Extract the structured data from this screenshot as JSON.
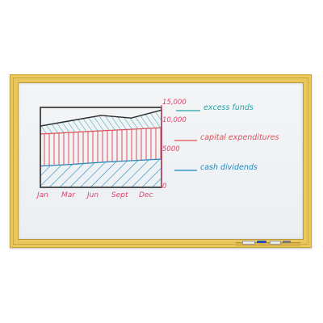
{
  "chart_data": {
    "type": "area",
    "x": [
      "Jan",
      "Mar",
      "Jun",
      "Sept",
      "Dec"
    ],
    "yticks": [
      "15,000",
      "10,000",
      "5000",
      "0"
    ],
    "series": [
      {
        "name": "cash dividends",
        "color": "#1b8ac2",
        "values": [
          4000,
          4300,
          4700,
          5000,
          5300
        ]
      },
      {
        "name": "capital expenditures",
        "color": "#e04f57",
        "values": [
          10000,
          10300,
          10600,
          10900,
          11200
        ]
      },
      {
        "name": "excess funds",
        "color": "#22a3a6",
        "values": [
          11500,
          12500,
          13500,
          13000,
          14500
        ]
      }
    ],
    "ylim": [
      0,
      15000
    ]
  },
  "colors": {
    "frame": "#eac75a",
    "board": "#eef0f2",
    "ink_black": "#2a2a2a",
    "ink_pink": "#e0446a"
  }
}
